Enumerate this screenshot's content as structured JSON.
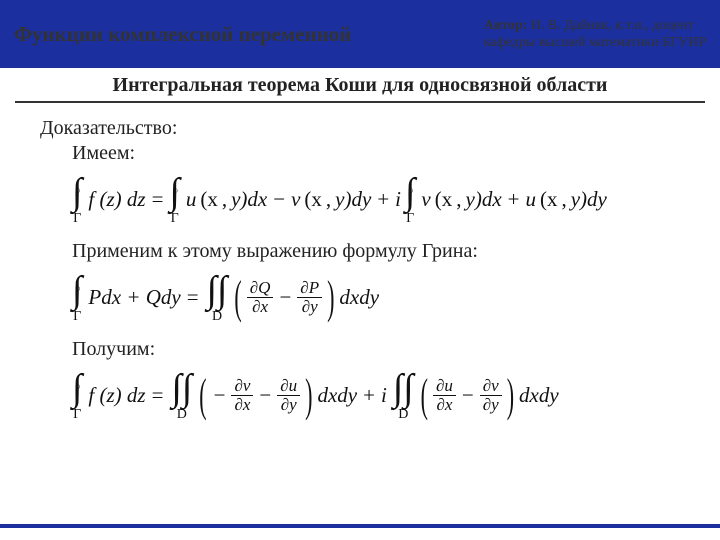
{
  "colors": {
    "header_bg": "#1c2f9e",
    "footer_bg": "#1c2f9e",
    "text_main": "#222222",
    "text_header": "#333333",
    "rule": "#333333",
    "page_bg": "#ffffff"
  },
  "typography": {
    "header_left_fontsize": 21,
    "header_right_fontsize": 14,
    "slide_title_fontsize": 20,
    "body_fontsize": 20,
    "formula_fontsize": 21,
    "int_big_fontsize": 38,
    "int_sub_fontsize": 14,
    "paren_fontsize": 22
  },
  "header": {
    "title": "Функции комплексной переменной",
    "author_label": "Автор:",
    "author_line1": "  И. В. Дайняк, к.т.н., доцент",
    "author_line2": "кафедры высшей математики БГУИР"
  },
  "slide": {
    "title": "Интегральная теорема Коши для односвязной области"
  },
  "body": {
    "proof_label": "Доказательство:",
    "have_label": "Имеем:",
    "apply_green": "Применим к этому выражению формулу Грина:",
    "obtain": "Получим:"
  },
  "sym": {
    "int": "∫",
    "ring": "○",
    "Gamma": "Γ",
    "D": "D",
    "partial": "∂",
    "eq": "=",
    "minus": "−",
    "plus": "+",
    "lpar": "(",
    "rpar": ")",
    "comma": ","
  },
  "f1": {
    "lhs": "f (z) dz",
    "t1a": "u",
    "t1b": "(x",
    "t1c": " y)dx",
    "t2a": "v",
    "t2b": "(x",
    "t2c": " y)dy",
    "imag_i": "i",
    "t3a": "v",
    "t3b": "(x",
    "t3c": " y)dx",
    "t4a": "u",
    "t4b": "(x",
    "t4c": " y)dy"
  },
  "f2": {
    "lhs": "Pdx + Qdy",
    "dQdx_num": "Q",
    "dQdx_den": "x",
    "dPdy_num": "P",
    "dPdy_den": "y",
    "tail": "dxdy"
  },
  "f3": {
    "lhs": "f (z) dz",
    "a_num": "v",
    "a_den": "x",
    "b_num": "u",
    "b_den": "y",
    "c_num": "u",
    "c_den": "x",
    "d_num": "v",
    "d_den": "y",
    "imag_i": "i",
    "tail": "dxdy"
  }
}
